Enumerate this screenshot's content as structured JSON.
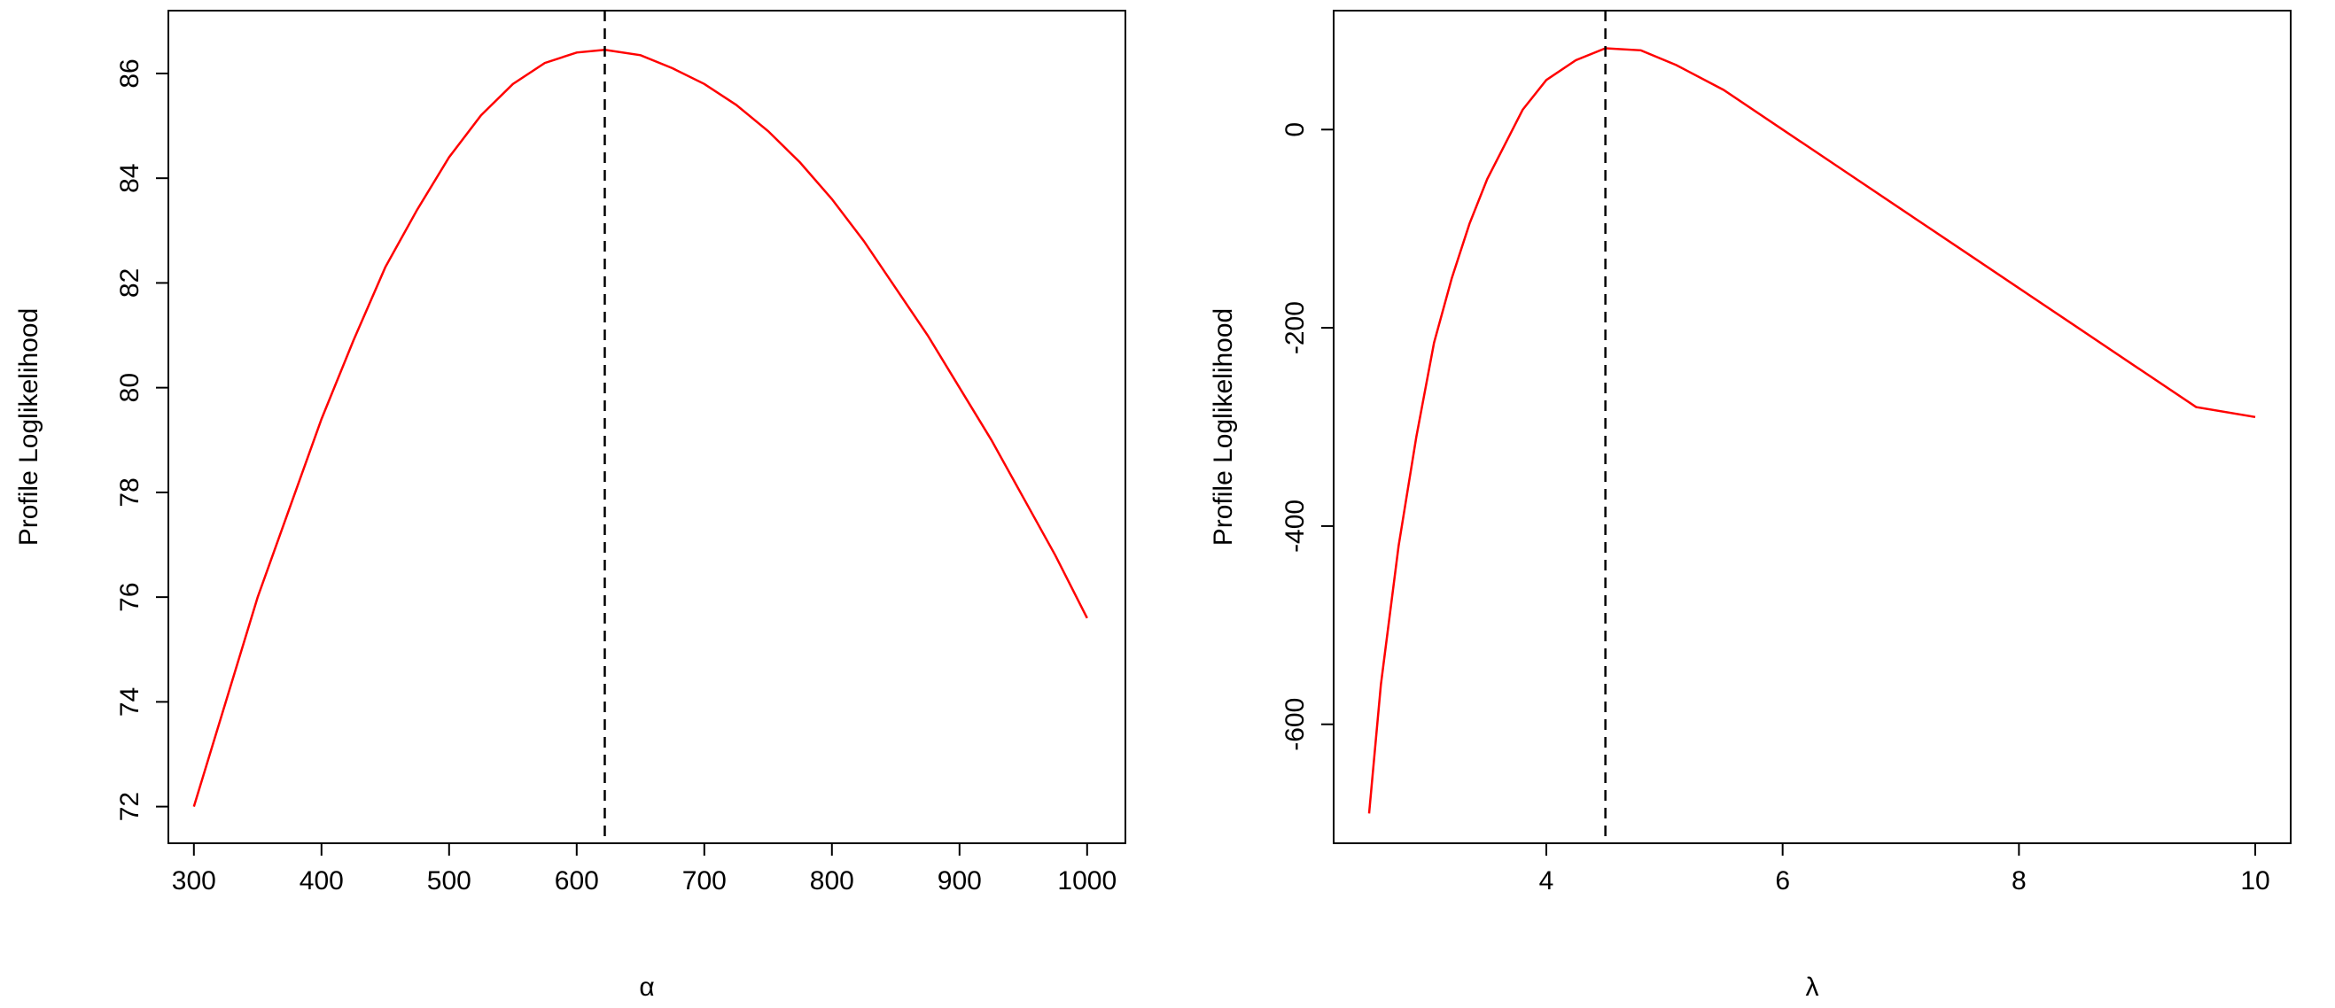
{
  "chart_data": [
    {
      "type": "line",
      "title": "",
      "xlabel": "α",
      "ylabel": "Profile Loglikelihood",
      "xlim": [
        280,
        1030
      ],
      "ylim": [
        71.3,
        87.2
      ],
      "xticks": [
        300,
        400,
        500,
        600,
        700,
        800,
        900,
        1000
      ],
      "xtick_labels": [
        "300",
        "400",
        "500",
        "600",
        "700",
        "800",
        "900",
        "1000"
      ],
      "yticks": [
        72,
        74,
        76,
        78,
        80,
        82,
        84,
        86
      ],
      "ytick_labels": [
        "72",
        "74",
        "76",
        "78",
        "80",
        "82",
        "84",
        "86"
      ],
      "grid": false,
      "vline": {
        "x": 622,
        "style": "dashed",
        "color": "#000000"
      },
      "series": [
        {
          "color": "#ff0000",
          "x": [
            300,
            325,
            350,
            375,
            400,
            425,
            450,
            475,
            500,
            525,
            550,
            575,
            600,
            622,
            650,
            675,
            700,
            725,
            750,
            775,
            800,
            825,
            850,
            875,
            900,
            925,
            950,
            975,
            1000
          ],
          "y": [
            72.0,
            74.0,
            76.0,
            77.7,
            79.4,
            80.9,
            82.3,
            83.4,
            84.4,
            85.2,
            85.8,
            86.2,
            86.4,
            86.45,
            86.35,
            86.1,
            85.8,
            85.4,
            84.9,
            84.3,
            83.6,
            82.8,
            81.9,
            81.0,
            80.0,
            79.0,
            77.9,
            76.8,
            75.6
          ]
        }
      ]
    },
    {
      "type": "line",
      "title": "",
      "xlabel": "λ",
      "ylabel": "Profile Loglikelihood",
      "xlim": [
        2.2,
        10.3
      ],
      "ylim": [
        -720,
        120
      ],
      "xticks": [
        4,
        6,
        8,
        10
      ],
      "xtick_labels": [
        "4",
        "6",
        "8",
        "10"
      ],
      "yticks": [
        -600,
        -400,
        -200,
        0
      ],
      "ytick_labels": [
        "-600",
        "-400",
        "-200",
        "0"
      ],
      "grid": false,
      "vline": {
        "x": 4.5,
        "style": "dashed",
        "color": "#000000"
      },
      "series": [
        {
          "color": "#ff0000",
          "x": [
            2.5,
            2.6,
            2.75,
            2.9,
            3.05,
            3.2,
            3.35,
            3.5,
            3.65,
            3.8,
            4.0,
            4.25,
            4.5,
            4.8,
            5.1,
            5.5,
            6.0,
            6.5,
            7.0,
            7.5,
            8.0,
            8.5,
            9.0,
            9.5,
            10.0
          ],
          "y": [
            -690,
            -560,
            -420,
            -310,
            -215,
            -150,
            -95,
            -50,
            -15,
            20,
            50,
            70,
            82,
            80,
            65,
            40,
            0,
            -40,
            -80,
            -120,
            -160,
            -200,
            -240,
            -280,
            -290
          ]
        }
      ]
    }
  ]
}
